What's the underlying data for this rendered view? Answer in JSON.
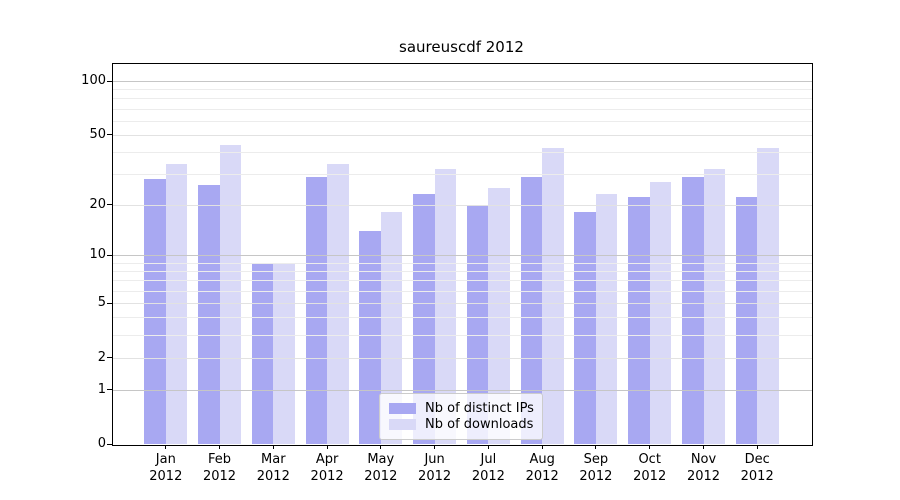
{
  "title": "saureuscdf 2012",
  "chart_data": {
    "type": "bar",
    "title": "saureuscdf 2012",
    "categories": [
      "Jan",
      "Feb",
      "Mar",
      "Apr",
      "May",
      "Jun",
      "Jul",
      "Aug",
      "Sep",
      "Oct",
      "Nov",
      "Dec"
    ],
    "category_year": "2012",
    "series": [
      {
        "name": "Nb of distinct IPs",
        "color": "#a8a8f2",
        "values": [
          28,
          26,
          9,
          29,
          14,
          23,
          20,
          29,
          18,
          22,
          29,
          22
        ]
      },
      {
        "name": "Nb of downloads",
        "color": "#d9d9f7",
        "values": [
          34,
          44,
          9,
          34,
          18,
          32,
          25,
          42,
          23,
          27,
          32,
          42
        ]
      }
    ],
    "xlabel": "",
    "ylabel": "",
    "scale": "log1p",
    "ylim": [
      0,
      126
    ],
    "y_ticks": [
      0,
      1,
      2,
      5,
      10,
      20,
      50,
      100
    ],
    "y_decade_ticks": [
      1,
      10,
      100
    ],
    "y_minor_ticks": [
      3,
      4,
      6,
      7,
      8,
      9,
      30,
      40,
      60,
      70,
      80,
      90
    ],
    "grid": true,
    "legend_position": "lower center"
  },
  "legend": {
    "items": [
      {
        "label": "Nb of distinct IPs"
      },
      {
        "label": "Nb of downloads"
      }
    ]
  },
  "colors": {
    "series_ips": "#a8a8f2",
    "series_downloads": "#d9d9f7",
    "grid_decade": "#c6c6c6",
    "grid_major": "#e2e2e2",
    "grid_minor": "#ececec",
    "axis": "#000000"
  }
}
